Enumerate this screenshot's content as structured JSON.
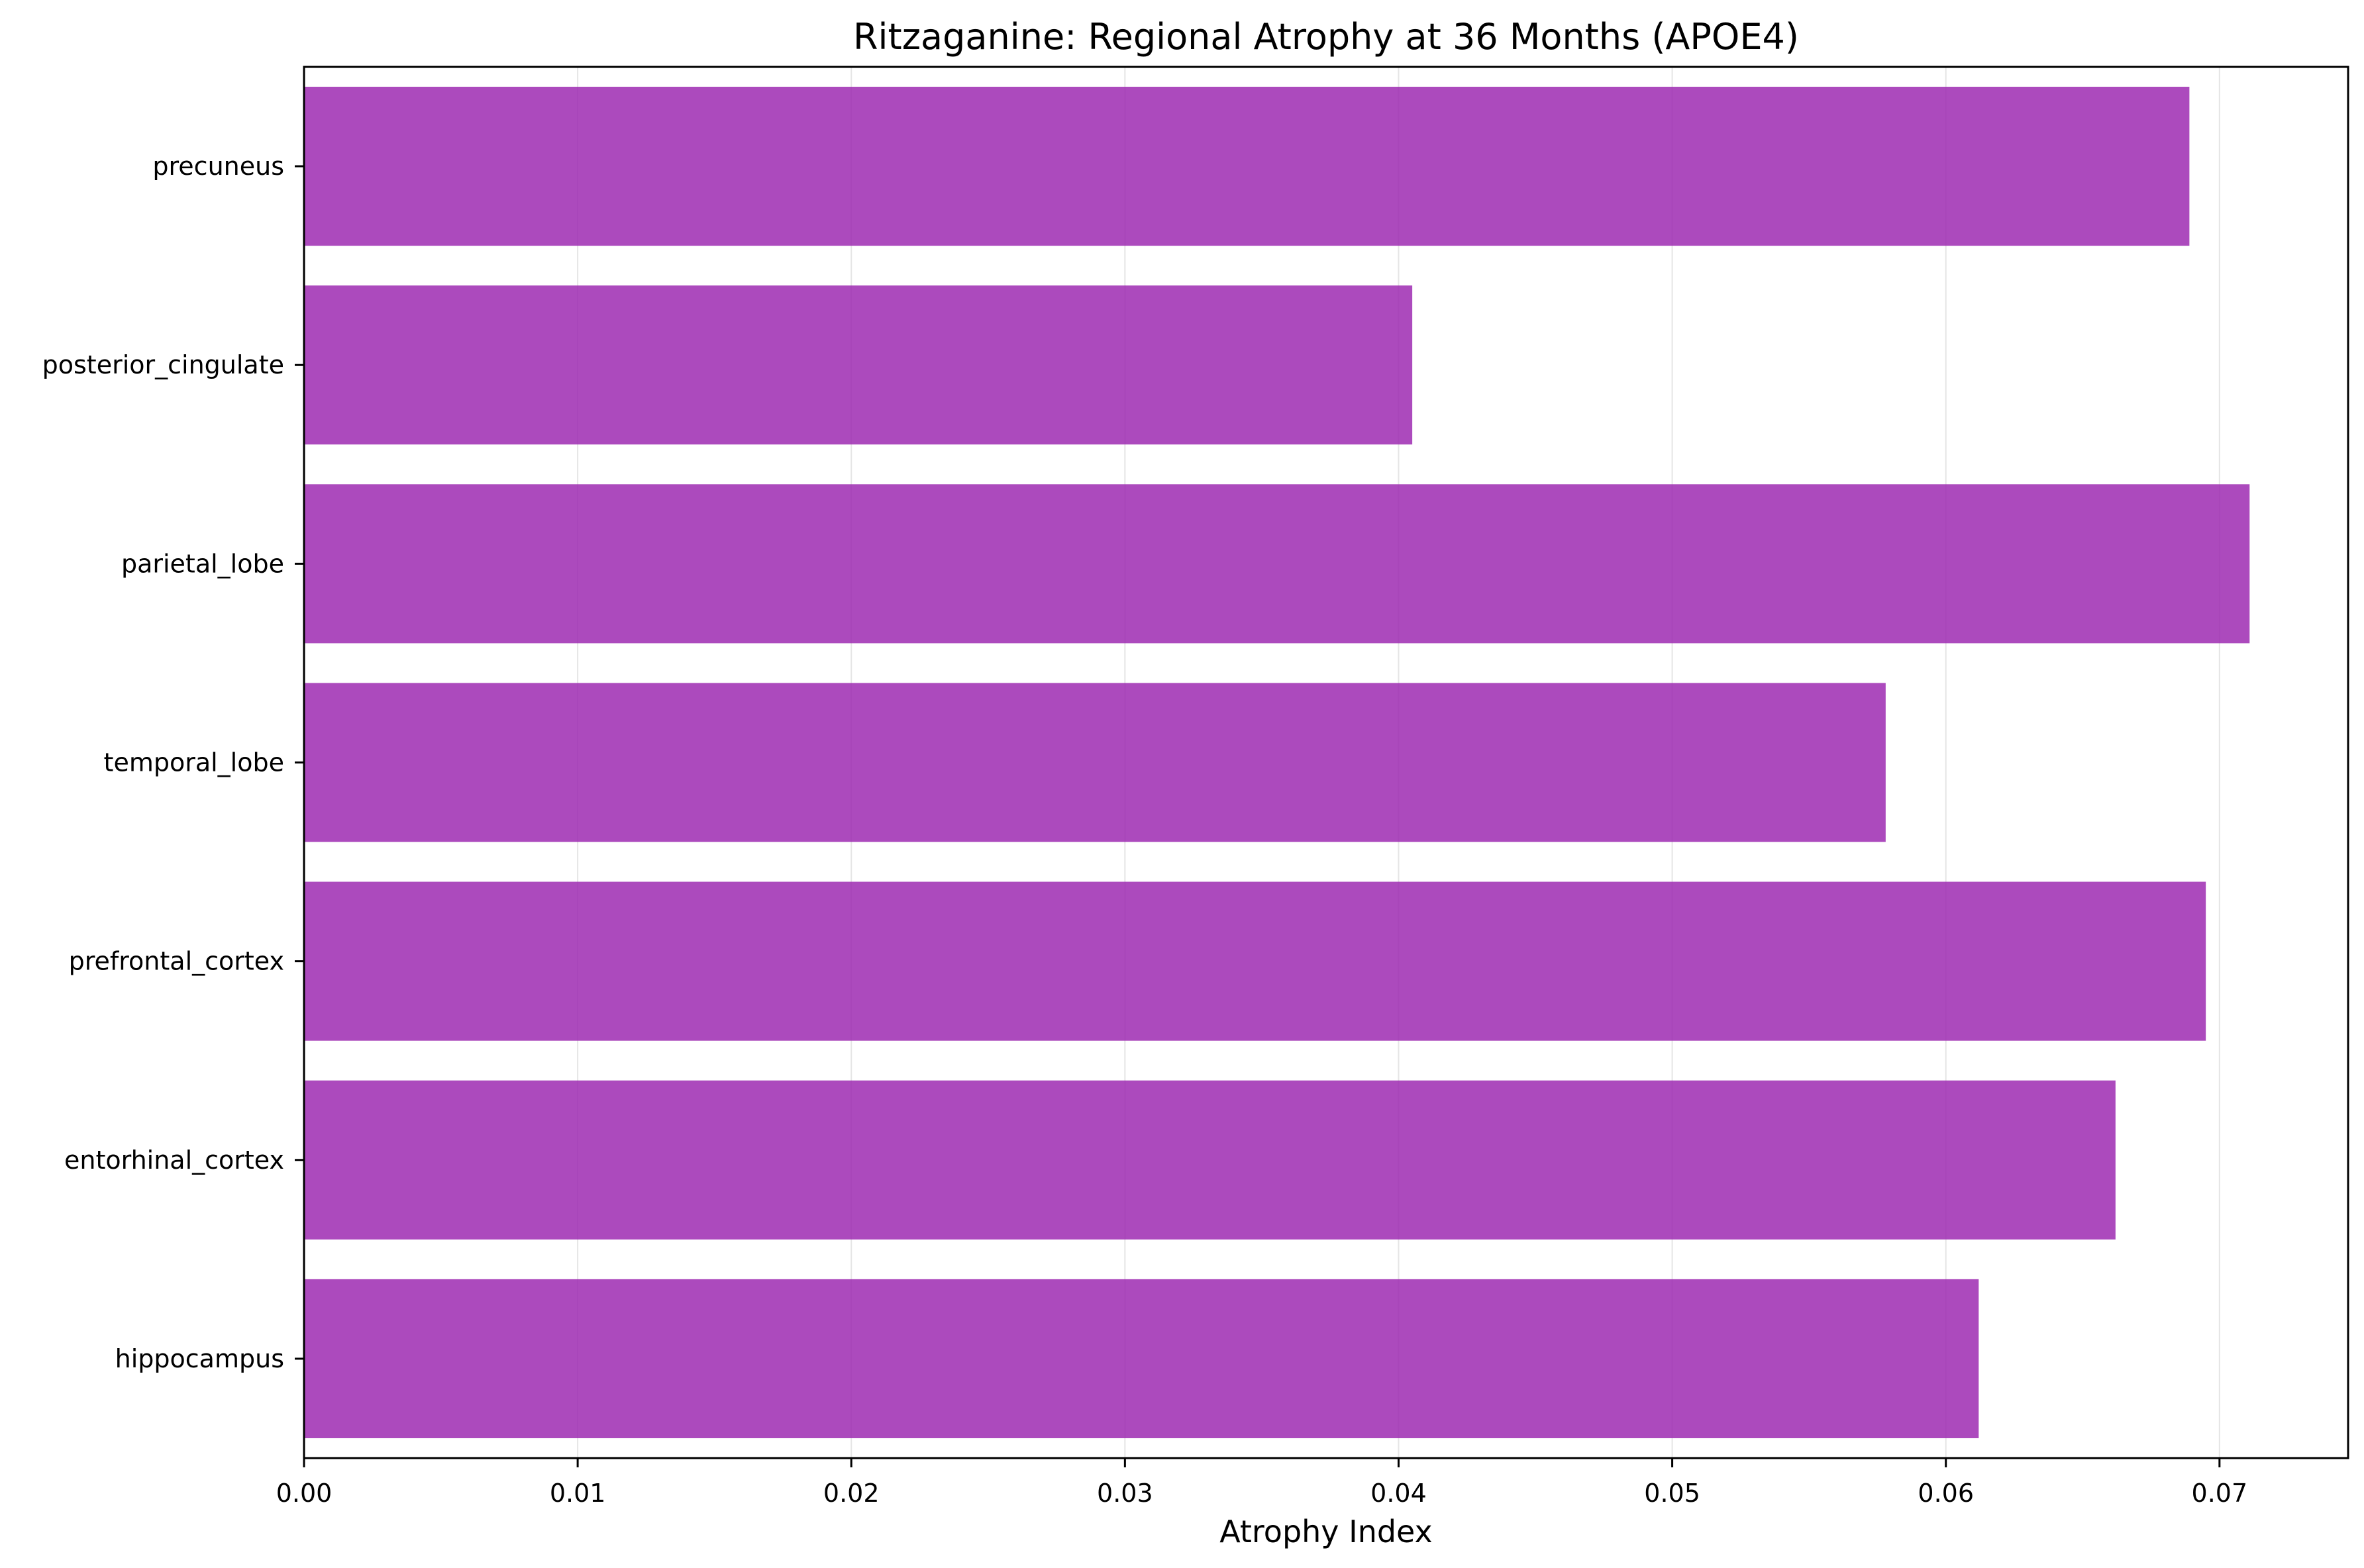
{
  "chart_data": {
    "type": "bar",
    "orientation": "horizontal",
    "title": "Ritzaganine: Regional Atrophy at 36 Months (APOE4)",
    "xlabel": "Atrophy Index",
    "ylabel": "",
    "categories": [
      "hippocampus",
      "entorhinal_cortex",
      "prefrontal_cortex",
      "temporal_lobe",
      "parietal_lobe",
      "posterior_cingulate",
      "precuneus"
    ],
    "values": [
      0.0612,
      0.0662,
      0.0695,
      0.0578,
      0.0711,
      0.0405,
      0.0689
    ],
    "xlim": [
      0,
      0.0747
    ],
    "xticks": [
      0.0,
      0.01,
      0.02,
      0.03,
      0.04,
      0.05,
      0.06,
      0.07
    ],
    "xtick_labels": [
      "0.00",
      "0.01",
      "0.02",
      "0.03",
      "0.04",
      "0.05",
      "0.06",
      "0.07"
    ],
    "grid": "vertical",
    "bar_color": "#9c27b0",
    "grid_color": "#e5e5e5",
    "legend": "none"
  }
}
